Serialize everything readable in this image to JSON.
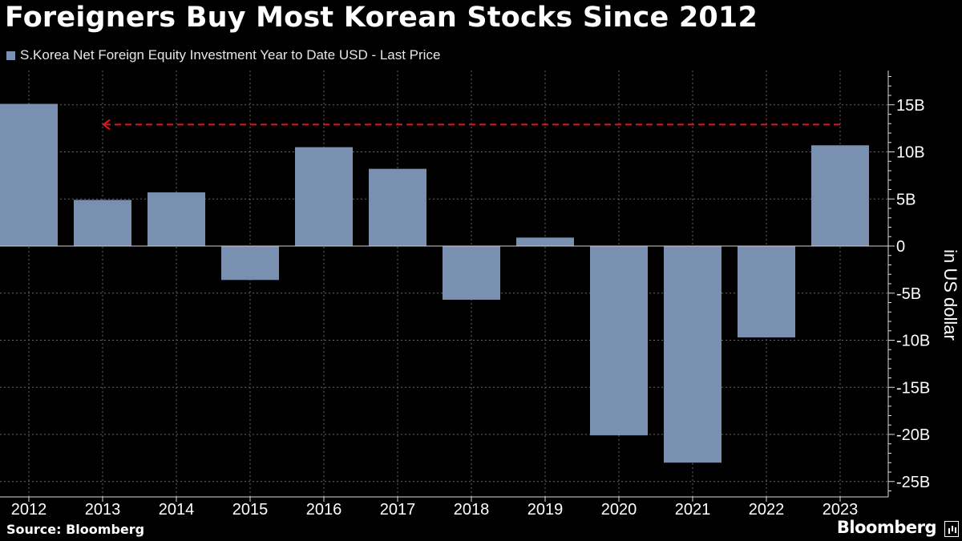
{
  "header": {
    "title": "Foreigners Buy Most Korean Stocks Since 2012"
  },
  "legend": {
    "label": "S.Korea Net Foreign Equity Investment Year to Date USD - Last Price",
    "color": "#7990B0"
  },
  "footer": {
    "source": "Source: Bloomberg",
    "brand": "Bloomberg"
  },
  "chart_data": {
    "type": "bar",
    "categories": [
      "2012",
      "2013",
      "2014",
      "2015",
      "2016",
      "2017",
      "2018",
      "2019",
      "2020",
      "2021",
      "2022",
      "2023"
    ],
    "series": [
      {
        "name": "S.Korea Net Foreign Equity Investment Year to Date USD - Last Price",
        "values": [
          15.1,
          4.9,
          5.7,
          -3.6,
          10.5,
          8.2,
          -5.7,
          0.9,
          -20.1,
          -23.0,
          -9.7,
          10.7
        ]
      }
    ],
    "unit": "B",
    "ylabel": "in US dollar",
    "ylim": [
      -26.5,
      18.5
    ],
    "yticks": [
      15,
      10,
      5,
      0,
      -5,
      -10,
      -15,
      -20,
      -25
    ],
    "ytick_labels": [
      "15B",
      "10B",
      "5B",
      "0",
      "-5B",
      "-10B",
      "-15B",
      "-20B",
      "-25B"
    ],
    "grid": true,
    "legend_position": "top-left",
    "colors": {
      "bar": "#7990B0",
      "reference_line": "#E1141E",
      "grid": "#666666",
      "axis": "#DDDDDD"
    },
    "annotation": {
      "type": "dashed-arrow",
      "from_category": "2023",
      "to_category": "2013",
      "value": 12.9
    }
  }
}
